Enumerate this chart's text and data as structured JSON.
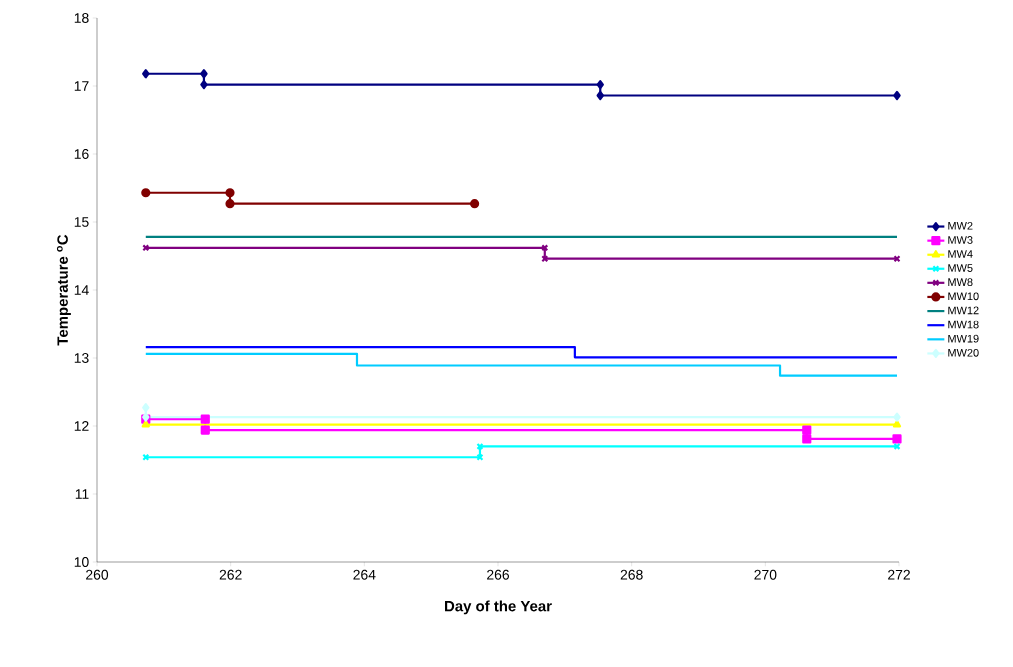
{
  "chart_data": {
    "type": "line",
    "xlabel": "Day of the Year",
    "ylabel": "Temperature $^{o}$C",
    "xlim": [
      260,
      272
    ],
    "xticks": [
      260,
      262,
      264,
      266,
      268,
      270,
      272
    ],
    "ylim": [
      10,
      18
    ],
    "yticks": [
      10,
      11,
      12,
      13,
      14,
      15,
      16,
      17,
      18
    ],
    "grid": false,
    "legend": "right",
    "series": [
      {
        "name": "MW2",
        "color": "#000080",
        "marker": "diamond",
        "x": [
          260.73,
          261.6,
          261.6,
          267.53,
          267.53,
          271.97
        ],
        "values": [
          17.18,
          17.18,
          17.02,
          17.02,
          16.86,
          16.86
        ]
      },
      {
        "name": "MW3",
        "color": "#ff00ff",
        "marker": "square",
        "x": [
          260.73,
          261.62,
          261.62,
          270.62,
          270.62,
          271.97
        ],
        "values": [
          12.1,
          12.1,
          11.94,
          11.94,
          11.81,
          11.81
        ]
      },
      {
        "name": "MW4",
        "color": "#ffff00",
        "marker": "triangle",
        "x": [
          260.73,
          271.97
        ],
        "values": [
          12.02,
          12.02
        ]
      },
      {
        "name": "MW5",
        "color": "#00ffff",
        "marker": "cross",
        "x": [
          260.73,
          265.73,
          265.73,
          271.97
        ],
        "values": [
          11.54,
          11.54,
          11.7,
          11.7
        ]
      },
      {
        "name": "MW8",
        "color": "#800080",
        "marker": "cross",
        "x": [
          260.73,
          266.7,
          266.7,
          271.97
        ],
        "values": [
          14.62,
          14.62,
          14.46,
          14.46
        ]
      },
      {
        "name": "MW10",
        "color": "#800000",
        "marker": "circle",
        "x": [
          260.73,
          261.99,
          261.99,
          265.65
        ],
        "values": [
          15.43,
          15.43,
          15.27,
          15.27
        ]
      },
      {
        "name": "MW12",
        "color": "#008080",
        "marker": "none",
        "x": [
          260.73,
          271.97
        ],
        "values": [
          14.78,
          14.78
        ]
      },
      {
        "name": "MW18",
        "color": "#0000ff",
        "marker": "none",
        "x": [
          260.73,
          267.15,
          267.15,
          271.97
        ],
        "values": [
          13.16,
          13.16,
          13.01,
          13.01
        ]
      },
      {
        "name": "MW19",
        "color": "#00ccff",
        "marker": "none",
        "x": [
          260.73,
          263.89,
          263.89,
          270.22,
          270.22,
          271.97
        ],
        "values": [
          13.06,
          13.06,
          12.89,
          12.89,
          12.74,
          12.74
        ]
      },
      {
        "name": "MW20",
        "color": "#ccffff",
        "marker": "diamond",
        "x": [
          260.73,
          260.73,
          271.97
        ],
        "values": [
          12.27,
          12.13,
          12.13
        ]
      }
    ]
  }
}
